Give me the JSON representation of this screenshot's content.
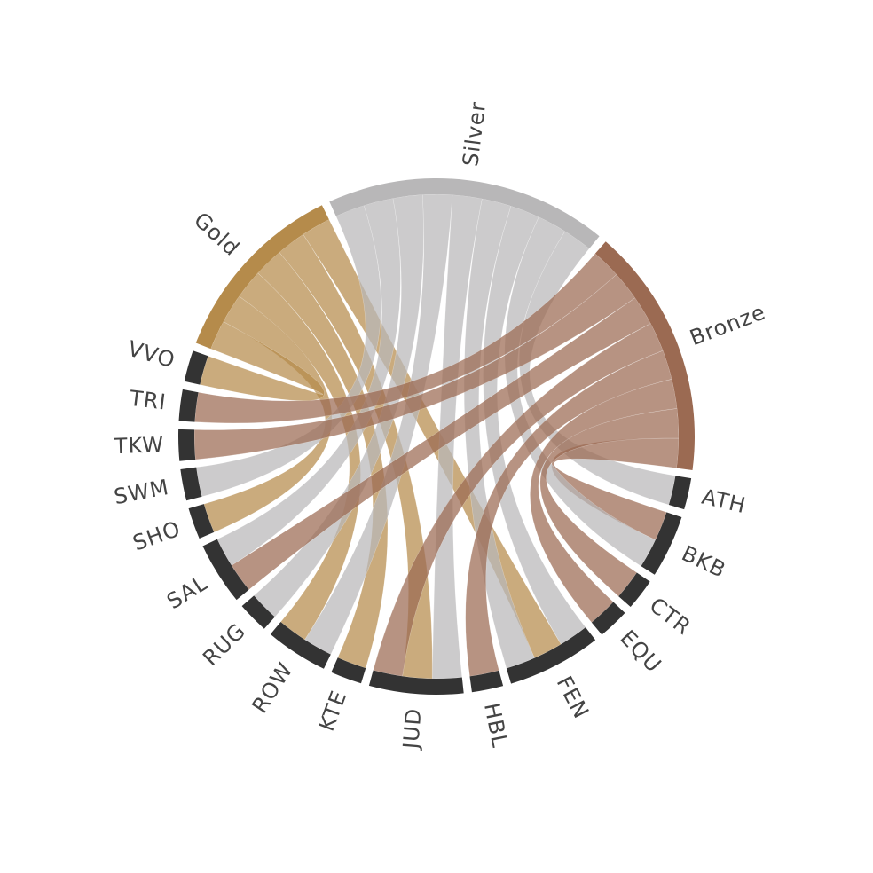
{
  "chart_data": {
    "type": "chord",
    "title": "",
    "medal_colors": {
      "Gold": "#b58b4b",
      "Silver": "#b8b7b8",
      "Bronze": "#9b6a52"
    },
    "sport_color": "#333333",
    "medals": [
      {
        "name": "Gold",
        "color": "#b58b4b"
      },
      {
        "name": "Silver",
        "color": "#b8b7b8"
      },
      {
        "name": "Bronze",
        "color": "#9b6a52"
      }
    ],
    "sports": [
      "ATH",
      "BKB",
      "CTR",
      "EQU",
      "FEN",
      "HBL",
      "JUD",
      "KTE",
      "ROW",
      "RUG",
      "SAL",
      "SHO",
      "SWM",
      "TKW",
      "TRI",
      "VVO"
    ],
    "flows": [
      {
        "sport": "ATH",
        "medal": "Silver",
        "value": 6
      },
      {
        "sport": "BKB",
        "medal": "Bronze",
        "value": 6
      },
      {
        "sport": "BKB",
        "medal": "Silver",
        "value": 6
      },
      {
        "sport": "CTR",
        "medal": "Bronze",
        "value": 6
      },
      {
        "sport": "EQU",
        "medal": "Bronze",
        "value": 6
      },
      {
        "sport": "FEN",
        "medal": "Silver",
        "value": 6
      },
      {
        "sport": "FEN",
        "medal": "Gold",
        "value": 6
      },
      {
        "sport": "FEN",
        "medal": "Silver",
        "value": 6
      },
      {
        "sport": "HBL",
        "medal": "Bronze",
        "value": 6
      },
      {
        "sport": "JUD",
        "medal": "Silver",
        "value": 6
      },
      {
        "sport": "JUD",
        "medal": "Gold",
        "value": 6
      },
      {
        "sport": "JUD",
        "medal": "Bronze",
        "value": 6
      },
      {
        "sport": "KTE",
        "medal": "Gold",
        "value": 6
      },
      {
        "sport": "ROW",
        "medal": "Silver",
        "value": 6
      },
      {
        "sport": "ROW",
        "medal": "Gold",
        "value": 6
      },
      {
        "sport": "RUG",
        "medal": "Silver",
        "value": 6
      },
      {
        "sport": "SAL",
        "medal": "Bronze",
        "value": 6
      },
      {
        "sport": "SAL",
        "medal": "Silver",
        "value": 6
      },
      {
        "sport": "SHO",
        "medal": "Gold",
        "value": 6
      },
      {
        "sport": "SWM",
        "medal": "Silver",
        "value": 6
      },
      {
        "sport": "TKW",
        "medal": "Bronze",
        "value": 6
      },
      {
        "sport": "TRI",
        "medal": "Bronze",
        "value": 6
      },
      {
        "sport": "VVO",
        "medal": "Gold",
        "value": 6
      }
    ]
  }
}
